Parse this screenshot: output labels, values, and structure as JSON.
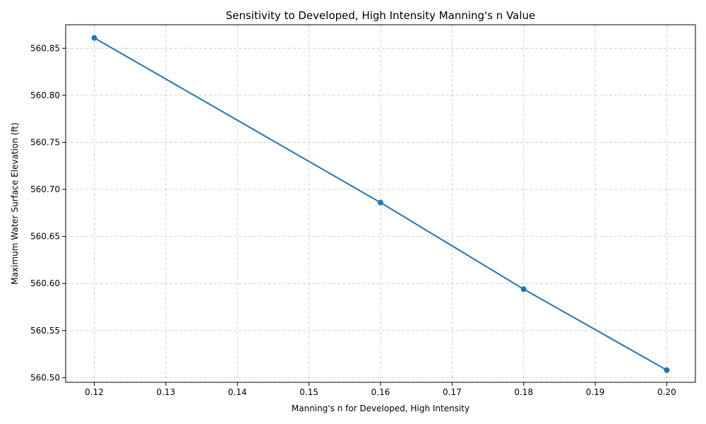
{
  "chart_data": {
    "type": "line",
    "title": "Sensitivity to Developed, High Intensity Manning's n Value",
    "xlabel": "Manning's n for Developed, High Intensity",
    "ylabel": "Maximum Water Surface Elevation (ft)",
    "xlim": [
      0.116,
      0.204
    ],
    "ylim": [
      560.495,
      560.875
    ],
    "x_ticks": [
      "0.12",
      "0.13",
      "0.14",
      "0.15",
      "0.16",
      "0.17",
      "0.18",
      "0.19",
      "0.20"
    ],
    "y_ticks": [
      "560.50",
      "560.55",
      "560.60",
      "560.65",
      "560.70",
      "560.75",
      "560.80",
      "560.85"
    ],
    "grid": true,
    "series": [
      {
        "color": "#1f77b4",
        "marker": "circle",
        "x": [
          0.12,
          0.16,
          0.18,
          0.2
        ],
        "y": [
          560.861,
          560.686,
          560.594,
          560.508
        ]
      }
    ]
  }
}
